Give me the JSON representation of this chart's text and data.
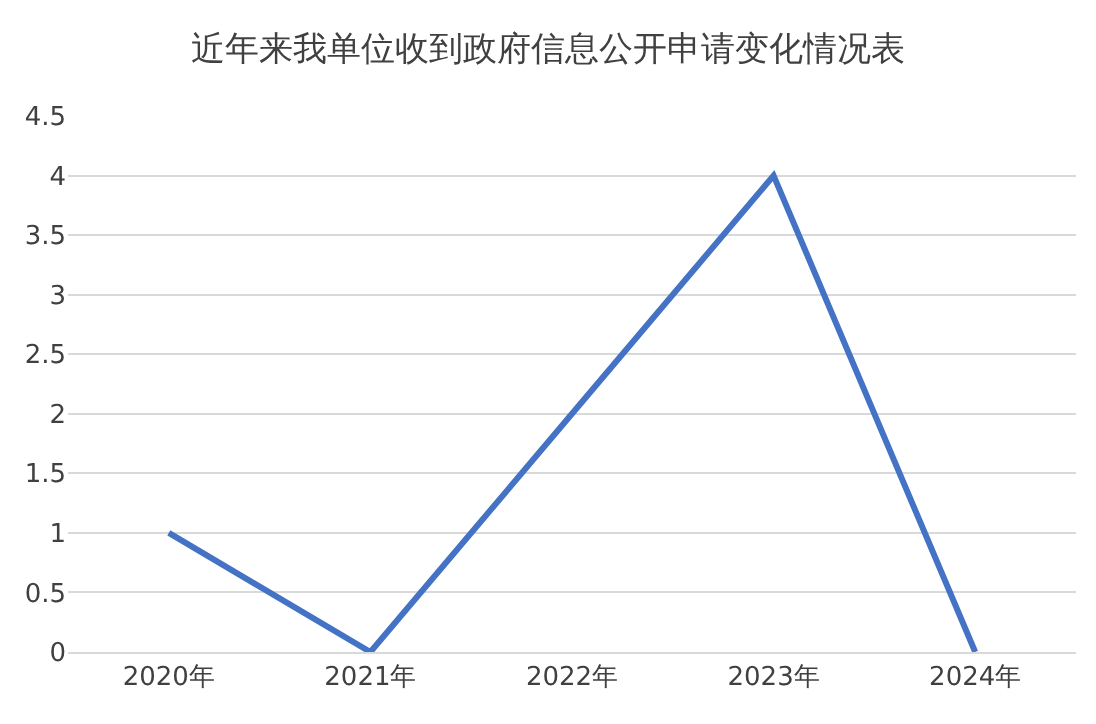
{
  "chart_data": {
    "type": "line",
    "title": "近年来我单位收到政府信息公开申请变化情况表",
    "categories": [
      "2020年",
      "2021年",
      "2022年",
      "2023年",
      "2024年"
    ],
    "series": [
      {
        "color": "#4472c4",
        "values": [
          1,
          0,
          2,
          4,
          0
        ]
      }
    ],
    "ylim": [
      0,
      4.5
    ],
    "yticks": [
      0,
      0.5,
      1,
      1.5,
      2,
      2.5,
      3,
      3.5,
      4,
      4.5
    ],
    "grid": "y",
    "marker": "none",
    "line_style": "solid"
  }
}
